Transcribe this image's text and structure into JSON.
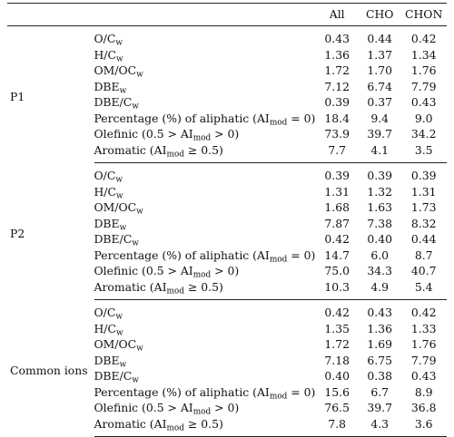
{
  "headers": [
    "All",
    "CHO",
    "CHON"
  ],
  "blocks": [
    {
      "name": "P1",
      "values": [
        [
          "0.43",
          "0.44",
          "0.42"
        ],
        [
          "1.36",
          "1.37",
          "1.34"
        ],
        [
          "1.72",
          "1.70",
          "1.76"
        ],
        [
          "7.12",
          "6.74",
          "7.79"
        ],
        [
          "0.39",
          "0.37",
          "0.43"
        ],
        [
          "18.4",
          "9.4",
          "9.0"
        ],
        [
          "73.9",
          "39.7",
          "34.2"
        ],
        [
          "7.7",
          "4.1",
          "3.5"
        ]
      ]
    },
    {
      "name": "P2",
      "values": [
        [
          "0.39",
          "0.39",
          "0.39"
        ],
        [
          "1.31",
          "1.32",
          "1.31"
        ],
        [
          "1.68",
          "1.63",
          "1.73"
        ],
        [
          "7.87",
          "7.38",
          "8.32"
        ],
        [
          "0.42",
          "0.40",
          "0.44"
        ],
        [
          "14.7",
          "6.0",
          "8.7"
        ],
        [
          "75.0",
          "34.3",
          "40.7"
        ],
        [
          "10.3",
          "4.9",
          "5.4"
        ]
      ]
    },
    {
      "name": "Common ions",
      "values": [
        [
          "0.42",
          "0.43",
          "0.42"
        ],
        [
          "1.35",
          "1.36",
          "1.33"
        ],
        [
          "1.72",
          "1.69",
          "1.76"
        ],
        [
          "7.18",
          "6.75",
          "7.79"
        ],
        [
          "0.40",
          "0.38",
          "0.43"
        ],
        [
          "15.6",
          "6.7",
          "8.9"
        ],
        [
          "76.5",
          "39.7",
          "36.8"
        ],
        [
          "7.8",
          "4.3",
          "3.6"
        ]
      ]
    }
  ],
  "params": [
    {
      "pre": "O/C",
      "sub": "w",
      "post": ""
    },
    {
      "pre": "H/C",
      "sub": "w",
      "post": ""
    },
    {
      "pre": "OM/OC",
      "sub": "w",
      "post": ""
    },
    {
      "pre": "DBE",
      "sub": "w",
      "post": ""
    },
    {
      "pre": "DBE/C",
      "sub": "w",
      "post": ""
    },
    {
      "pre": "Percentage (%) of aliphatic (AI",
      "sub": "mod",
      "post": " = 0)"
    },
    {
      "pre": "Olefinic (0.5 > AI",
      "sub": "mod",
      "post": " > 0)"
    },
    {
      "pre": "Aromatic (AI",
      "sub": "mod",
      "post": " ≥ 0.5)"
    }
  ]
}
